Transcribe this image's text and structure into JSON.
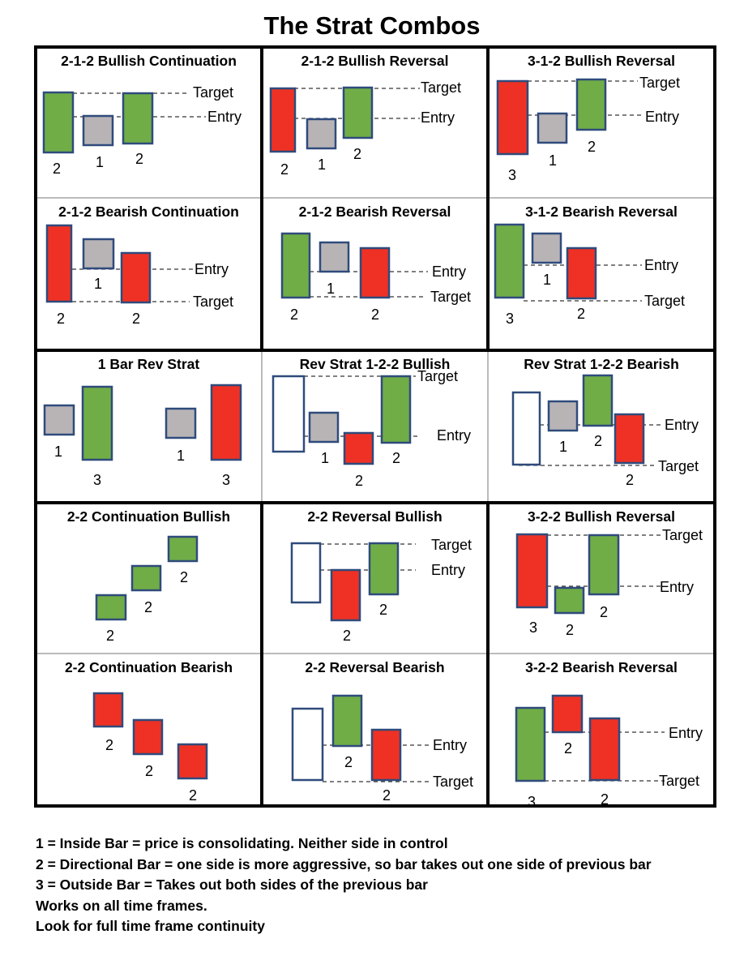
{
  "title": "The Strat Combos",
  "colors": {
    "green": "#70ad47",
    "red": "#ee3124",
    "gray": "#b8b4b6",
    "white": "#ffffff",
    "outline": "#2f4b7c"
  },
  "panels": [
    {
      "title": "2-1-2 Bullish Continuation",
      "bars": [
        {
          "type": "2",
          "color": "green",
          "label": "2"
        },
        {
          "type": "1",
          "color": "gray",
          "label": "1"
        },
        {
          "type": "2",
          "color": "green",
          "label": "2"
        }
      ],
      "lines": [
        {
          "label": "Target"
        },
        {
          "label": "Entry"
        }
      ]
    },
    {
      "title": "2-1-2 Bullish Reversal",
      "bars": [
        {
          "type": "2",
          "color": "red",
          "label": "2"
        },
        {
          "type": "1",
          "color": "gray",
          "label": "1"
        },
        {
          "type": "2",
          "color": "green",
          "label": "2"
        }
      ],
      "lines": [
        {
          "label": "Target"
        },
        {
          "label": "Entry"
        }
      ]
    },
    {
      "title": "3-1-2 Bullish Reversal",
      "bars": [
        {
          "type": "3",
          "color": "red",
          "label": "3"
        },
        {
          "type": "1",
          "color": "gray",
          "label": "1"
        },
        {
          "type": "2",
          "color": "green",
          "label": "2"
        }
      ],
      "lines": [
        {
          "label": "Target"
        },
        {
          "label": "Entry"
        }
      ]
    },
    {
      "title": "2-1-2 Bearish Continuation",
      "bars": [
        {
          "type": "2",
          "color": "red",
          "label": "2"
        },
        {
          "type": "1",
          "color": "gray",
          "label": "1"
        },
        {
          "type": "2",
          "color": "red",
          "label": "2"
        }
      ],
      "lines": [
        {
          "label": "Entry"
        },
        {
          "label": "Target"
        }
      ]
    },
    {
      "title": "2-1-2 Bearish Reversal",
      "bars": [
        {
          "type": "2",
          "color": "green",
          "label": "2"
        },
        {
          "type": "1",
          "color": "gray",
          "label": "1"
        },
        {
          "type": "2",
          "color": "red",
          "label": "2"
        }
      ],
      "lines": [
        {
          "label": "Entry"
        },
        {
          "label": "Target"
        }
      ]
    },
    {
      "title": "3-1-2 Bearish Reversal",
      "bars": [
        {
          "type": "3",
          "color": "green",
          "label": "3"
        },
        {
          "type": "1",
          "color": "gray",
          "label": "1"
        },
        {
          "type": "2",
          "color": "red",
          "label": "2"
        }
      ],
      "lines": [
        {
          "label": "Entry"
        },
        {
          "label": "Target"
        }
      ]
    },
    {
      "title": "1 Bar Rev Strat",
      "bars": [
        {
          "type": "1",
          "color": "gray",
          "label": "1"
        },
        {
          "type": "3",
          "color": "green",
          "label": "3"
        },
        {
          "type": "1",
          "color": "gray",
          "label": "1"
        },
        {
          "type": "3",
          "color": "red",
          "label": "3"
        }
      ],
      "lines": []
    },
    {
      "title": "Rev Strat 1-2-2 Bullish",
      "bars": [
        {
          "type": "prior",
          "color": "white",
          "label": ""
        },
        {
          "type": "1",
          "color": "gray",
          "label": "1"
        },
        {
          "type": "2",
          "color": "red",
          "label": "2"
        },
        {
          "type": "2",
          "color": "green",
          "label": "2"
        }
      ],
      "lines": [
        {
          "label": "Target"
        },
        {
          "label": "Entry"
        }
      ]
    },
    {
      "title": "Rev Strat 1-2-2 Bearish",
      "bars": [
        {
          "type": "prior",
          "color": "white",
          "label": ""
        },
        {
          "type": "1",
          "color": "gray",
          "label": "1"
        },
        {
          "type": "2",
          "color": "green",
          "label": "2"
        },
        {
          "type": "2",
          "color": "red",
          "label": "2"
        }
      ],
      "lines": [
        {
          "label": "Entry"
        },
        {
          "label": "Target"
        }
      ]
    },
    {
      "title": "2-2 Continuation Bullish",
      "bars": [
        {
          "type": "2",
          "color": "green",
          "label": "2"
        },
        {
          "type": "2",
          "color": "green",
          "label": "2"
        },
        {
          "type": "2",
          "color": "green",
          "label": "2"
        }
      ],
      "lines": []
    },
    {
      "title": "2-2 Reversal Bullish",
      "bars": [
        {
          "type": "prior",
          "color": "white",
          "label": ""
        },
        {
          "type": "2",
          "color": "red",
          "label": "2"
        },
        {
          "type": "2",
          "color": "green",
          "label": "2"
        }
      ],
      "lines": [
        {
          "label": "Target"
        },
        {
          "label": "Entry"
        }
      ]
    },
    {
      "title": "3-2-2 Bullish Reversal",
      "bars": [
        {
          "type": "3",
          "color": "red",
          "label": "3"
        },
        {
          "type": "2",
          "color": "green",
          "label": "2"
        },
        {
          "type": "2",
          "color": "green",
          "label": "2"
        }
      ],
      "lines": [
        {
          "label": "Target"
        },
        {
          "label": "Entry"
        }
      ]
    },
    {
      "title": "2-2 Continuation Bearish",
      "bars": [
        {
          "type": "2",
          "color": "red",
          "label": "2"
        },
        {
          "type": "2",
          "color": "red",
          "label": "2"
        },
        {
          "type": "2",
          "color": "red",
          "label": "2"
        }
      ],
      "lines": []
    },
    {
      "title": "2-2 Reversal Bearish",
      "bars": [
        {
          "type": "prior",
          "color": "white",
          "label": ""
        },
        {
          "type": "2",
          "color": "green",
          "label": "2"
        },
        {
          "type": "2",
          "color": "red",
          "label": "2"
        }
      ],
      "lines": [
        {
          "label": "Entry"
        },
        {
          "label": "Target"
        }
      ]
    },
    {
      "title": "3-2-2 Bearish Reversal",
      "bars": [
        {
          "type": "3",
          "color": "green",
          "label": "3"
        },
        {
          "type": "2",
          "color": "red",
          "label": "2"
        },
        {
          "type": "2",
          "color": "red",
          "label": "2"
        }
      ],
      "lines": [
        {
          "label": "Entry"
        },
        {
          "label": "Target"
        }
      ]
    }
  ],
  "legend": [
    "1 = Inside Bar = price is consolidating. Neither side in control",
    "2 = Directional Bar = one side is more aggressive, so bar takes out one side of previous bar",
    "3 = Outside Bar = Takes out both sides of the previous bar",
    "Works on all time frames.",
    "Look for full time frame continuity"
  ]
}
